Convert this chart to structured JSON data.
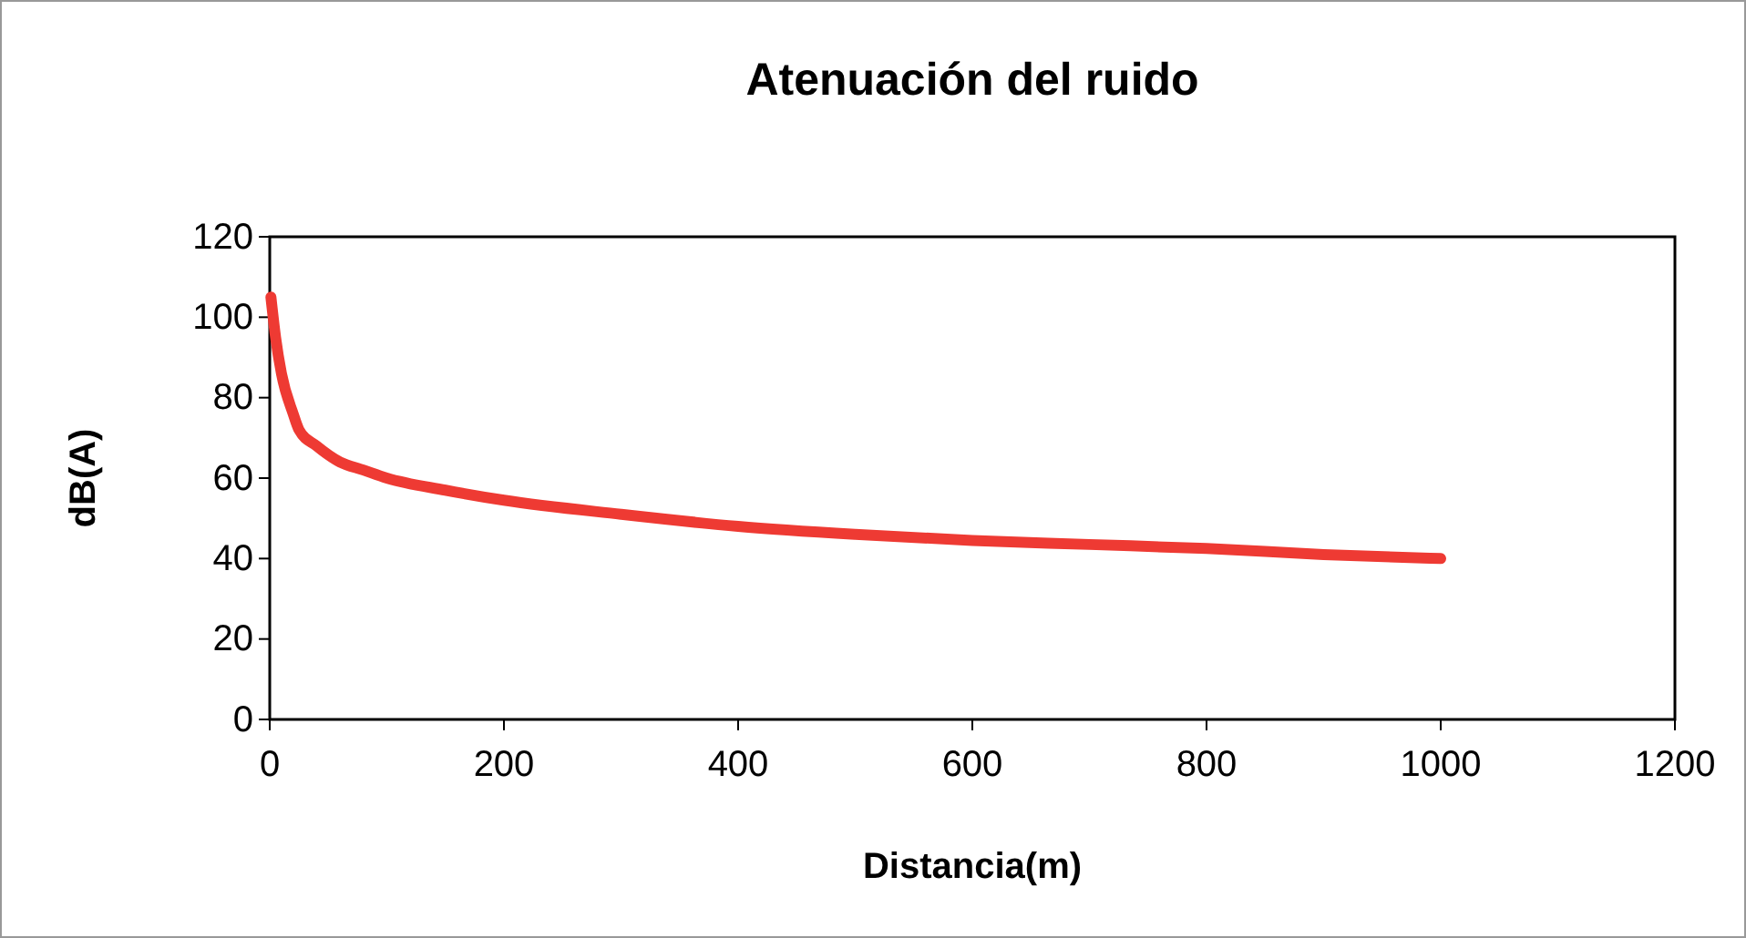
{
  "chart_data": {
    "type": "line",
    "title": "Atenuación del ruido",
    "xlabel": "Distancia(m)",
    "ylabel": "dB(A)",
    "x": [
      1,
      5,
      10,
      20,
      25,
      40,
      60,
      80,
      100,
      150,
      200,
      300,
      400,
      500,
      600,
      700,
      800,
      900,
      1000
    ],
    "series": [
      {
        "color": "#ee3a33",
        "values": [
          105,
          95,
          86,
          76,
          72,
          68,
          64,
          62,
          60,
          57,
          54.5,
          51,
          48,
          46,
          44.5,
          43.5,
          42.5,
          41,
          40
        ]
      }
    ],
    "xlim": [
      0,
      1200
    ],
    "xticks": [
      0,
      200,
      400,
      600,
      800,
      1000,
      1200
    ],
    "ylim": [
      0,
      120
    ],
    "yticks": [
      0,
      20,
      40,
      60,
      80,
      100,
      120
    ],
    "grid": false,
    "marker": "none",
    "line_style": "solid"
  }
}
